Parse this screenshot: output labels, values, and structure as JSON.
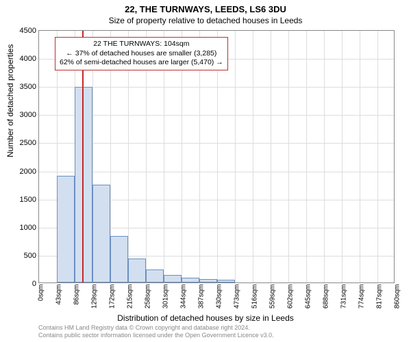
{
  "title": "22, THE TURNWAYS, LEEDS, LS6 3DU",
  "subtitle": "Size of property relative to detached houses in Leeds",
  "y_axis_title": "Number of detached properties",
  "x_axis_title": "Distribution of detached houses by size in Leeds",
  "footer_line1": "Contains HM Land Registry data © Crown copyright and database right 2024.",
  "footer_line2": "Contains public sector information licensed under the Open Government Licence v3.0.",
  "chart": {
    "type": "histogram",
    "ylim": [
      0,
      4500
    ],
    "ytick_step": 500,
    "yticks": [
      0,
      500,
      1000,
      1500,
      2000,
      2500,
      3000,
      3500,
      4000,
      4500
    ],
    "x_labels": [
      "0sqm",
      "43sqm",
      "86sqm",
      "129sqm",
      "172sqm",
      "215sqm",
      "258sqm",
      "301sqm",
      "344sqm",
      "387sqm",
      "430sqm",
      "473sqm",
      "516sqm",
      "559sqm",
      "602sqm",
      "645sqm",
      "688sqm",
      "731sqm",
      "774sqm",
      "817sqm",
      "860sqm"
    ],
    "x_label_step": 43,
    "x_min": 0,
    "x_max": 860,
    "bin_width": 43,
    "bars": [
      0,
      1900,
      3480,
      1740,
      830,
      430,
      230,
      140,
      90,
      60,
      50,
      0,
      0,
      0,
      0,
      0,
      0,
      0,
      0,
      0
    ],
    "bar_fill": "#d2dff0",
    "bar_stroke": "#6a8fc2",
    "grid_color": "#dddddd",
    "border_color": "#888888",
    "background": "#ffffff",
    "marker": {
      "x_value": 104,
      "color": "#c62828"
    },
    "annotation": {
      "lines": [
        "22 THE TURNWAYS: 104sqm",
        "← 37% of detached houses are smaller (3,285)",
        "62% of semi-detached houses are larger (5,470) →"
      ],
      "border_color": "#b62f2f",
      "bg": "#ffffff",
      "fontsize": 10.5
    }
  }
}
